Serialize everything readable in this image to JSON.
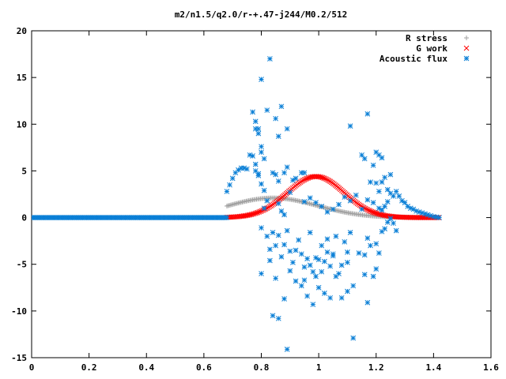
{
  "chart_data": {
    "type": "scatter",
    "title": "m2/n1.5/q2.0/r-+.47-j244/M0.2/512",
    "xlabel": "",
    "ylabel": "",
    "xlim": [
      0,
      1.6
    ],
    "ylim": [
      -15,
      20
    ],
    "x_ticks": [
      "0",
      "0.2",
      "0.4",
      "0.6",
      "0.8",
      "1",
      "1.2",
      "1.4",
      "1.6"
    ],
    "y_ticks": [
      "20",
      "15",
      "10",
      "5",
      "0",
      "-5",
      "-10",
      "-15"
    ],
    "legend_position": "top-right",
    "series": [
      {
        "name": "R stress",
        "marker": "plus",
        "color": "#a0a0a0",
        "curve": "gaussian",
        "params": {
          "x_start": 0.68,
          "x_end": 1.42,
          "amplitude": 2.1,
          "center": 0.84,
          "width": 0.22
        }
      },
      {
        "name": "G work",
        "marker": "cross",
        "color": "#ff0000",
        "curve": "gaussian",
        "params": {
          "x_start": 0.68,
          "x_end": 1.42,
          "amplitude": 4.4,
          "center": 0.99,
          "width": 0.14
        }
      },
      {
        "name": "Acoustic flux",
        "marker": "star",
        "color": "#0a7fd6",
        "baseline": {
          "x_start": 0.0,
          "x_end": 0.68,
          "y": 0.0
        },
        "points": [
          [
            0.68,
            2.8
          ],
          [
            0.69,
            3.5
          ],
          [
            0.7,
            4.2
          ],
          [
            0.71,
            4.8
          ],
          [
            0.72,
            5.1
          ],
          [
            0.73,
            5.3
          ],
          [
            0.74,
            5.3
          ],
          [
            0.75,
            5.2
          ],
          [
            0.76,
            6.7
          ],
          [
            0.77,
            6.6
          ],
          [
            0.78,
            5.0
          ],
          [
            0.79,
            4.7
          ],
          [
            0.8,
            3.6
          ],
          [
            0.81,
            2.9
          ],
          [
            0.81,
            1.0
          ],
          [
            0.82,
            1.8
          ],
          [
            0.77,
            11.3
          ],
          [
            0.78,
            10.3
          ],
          [
            0.78,
            9.5
          ],
          [
            0.79,
            9.0
          ],
          [
            0.8,
            7.6
          ],
          [
            0.81,
            6.3
          ],
          [
            0.8,
            7.0
          ],
          [
            0.78,
            5.7
          ],
          [
            0.79,
            4.5
          ],
          [
            0.83,
            17.0
          ],
          [
            0.8,
            14.8
          ],
          [
            0.79,
            9.5
          ],
          [
            0.82,
            11.5
          ],
          [
            0.85,
            10.6
          ],
          [
            0.86,
            8.7
          ],
          [
            0.87,
            11.9
          ],
          [
            0.89,
            9.5
          ],
          [
            0.86,
            3.9
          ],
          [
            0.86,
            1.5
          ],
          [
            0.87,
            0.7
          ],
          [
            0.88,
            0.3
          ],
          [
            0.9,
            2.7
          ],
          [
            0.91,
            4.0
          ],
          [
            0.89,
            5.4
          ],
          [
            0.88,
            4.8
          ],
          [
            0.85,
            4.6
          ],
          [
            0.84,
            4.8
          ],
          [
            0.92,
            4.2
          ],
          [
            0.94,
            4.8
          ],
          [
            0.95,
            4.8
          ],
          [
            0.8,
            -1.1
          ],
          [
            0.82,
            -2.0
          ],
          [
            0.83,
            -3.4
          ],
          [
            0.84,
            -1.6
          ],
          [
            0.85,
            -3.0
          ],
          [
            0.86,
            -1.9
          ],
          [
            0.87,
            -4.2
          ],
          [
            0.88,
            -2.9
          ],
          [
            0.89,
            -1.4
          ],
          [
            0.9,
            -3.6
          ],
          [
            0.91,
            -4.8
          ],
          [
            0.92,
            -3.5
          ],
          [
            0.93,
            -2.4
          ],
          [
            0.94,
            -3.9
          ],
          [
            0.95,
            -5.3
          ],
          [
            0.96,
            -4.4
          ],
          [
            0.97,
            -1.6
          ],
          [
            0.98,
            -5.8
          ],
          [
            0.99,
            -6.3
          ],
          [
            1.0,
            -4.5
          ],
          [
            1.01,
            -3.0
          ],
          [
            1.02,
            -4.7
          ],
          [
            1.03,
            -3.7
          ],
          [
            1.04,
            -5.2
          ],
          [
            1.05,
            -4.1
          ],
          [
            1.06,
            -2.0
          ],
          [
            1.07,
            -6.0
          ],
          [
            1.08,
            -5.1
          ],
          [
            1.09,
            -2.6
          ],
          [
            1.1,
            -3.7
          ],
          [
            1.11,
            -1.6
          ],
          [
            0.9,
            -5.7
          ],
          [
            0.92,
            -6.8
          ],
          [
            0.94,
            -7.3
          ],
          [
            0.96,
            -8.4
          ],
          [
            0.98,
            -9.3
          ],
          [
            1.0,
            -7.5
          ],
          [
            1.02,
            -8.1
          ],
          [
            1.04,
            -8.6
          ],
          [
            1.06,
            -6.3
          ],
          [
            1.08,
            -8.6
          ],
          [
            1.1,
            -7.9
          ],
          [
            1.12,
            -7.3
          ],
          [
            0.88,
            -8.7
          ],
          [
            0.85,
            -6.5
          ],
          [
            0.83,
            -4.6
          ],
          [
            0.8,
            -6.0
          ],
          [
            0.84,
            -10.5
          ],
          [
            0.86,
            -10.8
          ],
          [
            0.89,
            -14.1
          ],
          [
            0.95,
            -6.7
          ],
          [
            0.97,
            -5.1
          ],
          [
            0.99,
            -4.3
          ],
          [
            1.01,
            -5.8
          ],
          [
            1.03,
            -2.3
          ],
          [
            1.05,
            -3.9
          ],
          [
            1.1,
            -4.8
          ],
          [
            1.12,
            -12.9
          ],
          [
            1.14,
            -3.8
          ],
          [
            1.16,
            -4.0
          ],
          [
            1.17,
            -2.2
          ],
          [
            1.18,
            -3.0
          ],
          [
            1.16,
            -6.1
          ],
          [
            1.17,
            -9.1
          ],
          [
            1.19,
            -6.3
          ],
          [
            1.2,
            -5.5
          ],
          [
            1.21,
            -3.8
          ],
          [
            1.22,
            -1.5
          ],
          [
            1.23,
            -1.2
          ],
          [
            1.24,
            -0.5
          ],
          [
            1.25,
            -0.1
          ],
          [
            1.26,
            -0.6
          ],
          [
            1.27,
            -1.4
          ],
          [
            1.2,
            -2.8
          ],
          [
            1.11,
            9.8
          ],
          [
            1.17,
            11.1
          ],
          [
            1.2,
            7.0
          ],
          [
            1.21,
            6.7
          ],
          [
            1.22,
            6.4
          ],
          [
            1.15,
            6.7
          ],
          [
            1.16,
            6.3
          ],
          [
            1.18,
            3.8
          ],
          [
            1.19,
            5.6
          ],
          [
            1.2,
            3.7
          ],
          [
            1.21,
            2.8
          ],
          [
            1.22,
            3.8
          ],
          [
            1.23,
            4.3
          ],
          [
            1.24,
            3.0
          ],
          [
            1.25,
            4.6
          ],
          [
            1.26,
            2.3
          ],
          [
            1.25,
            2.6
          ],
          [
            1.24,
            1.7
          ],
          [
            1.23,
            1.2
          ],
          [
            1.22,
            0.8
          ],
          [
            1.21,
            1.0
          ],
          [
            1.19,
            1.6
          ],
          [
            1.17,
            1.9
          ],
          [
            1.15,
            0.9
          ],
          [
            1.13,
            2.4
          ],
          [
            1.11,
            1.8
          ],
          [
            1.09,
            2.2
          ],
          [
            1.07,
            1.4
          ],
          [
            1.05,
            0.9
          ],
          [
            1.03,
            0.6
          ],
          [
            1.01,
            1.2
          ],
          [
            0.99,
            1.6
          ],
          [
            0.97,
            2.1
          ],
          [
            0.95,
            1.7
          ],
          [
            1.27,
            2.8
          ],
          [
            1.28,
            2.3
          ],
          [
            1.29,
            1.8
          ],
          [
            1.3,
            1.6
          ],
          [
            1.31,
            1.2
          ],
          [
            1.32,
            1.0
          ],
          [
            1.33,
            0.9
          ],
          [
            1.34,
            0.7
          ],
          [
            1.35,
            0.6
          ],
          [
            1.36,
            0.5
          ],
          [
            1.37,
            0.4
          ],
          [
            1.38,
            0.3
          ],
          [
            1.39,
            0.2
          ],
          [
            1.4,
            0.1
          ],
          [
            1.41,
            0.05
          ],
          [
            1.42,
            0.0
          ]
        ]
      }
    ]
  }
}
